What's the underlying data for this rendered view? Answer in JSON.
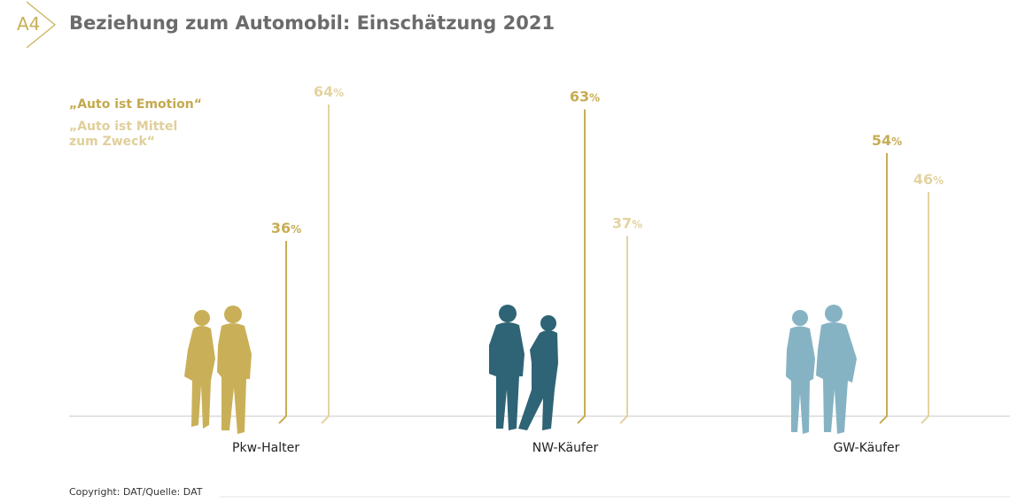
{
  "header": {
    "badge": "A4",
    "title": "Beziehung zum Automobil: Einschätzung 2021"
  },
  "legend": {
    "emotion": "„Auto ist Emotion“",
    "mittel": "„Auto ist Mittel zum Zweck“"
  },
  "footer": {
    "copyright": "Copyright: DAT/Quelle: DAT"
  },
  "colors": {
    "emotion": "#c7ad55",
    "mittel": "#e3d3a1",
    "axis": "#c8c8c8",
    "group_pkw": "#c9b058",
    "group_nw": "#2e6475",
    "group_gw": "#86b3c4"
  },
  "chart_data": {
    "type": "bar",
    "categories": [
      "Pkw-Halter",
      "NW-Käufer",
      "GW-Käufer"
    ],
    "series": [
      {
        "name": "„Auto ist Emotion“",
        "values": [
          36,
          63,
          54
        ]
      },
      {
        "name": "„Auto ist Mittel zum Zweck“",
        "values": [
          64,
          37,
          46
        ]
      }
    ],
    "value_suffix": "%",
    "ylim": [
      0,
      100
    ]
  }
}
